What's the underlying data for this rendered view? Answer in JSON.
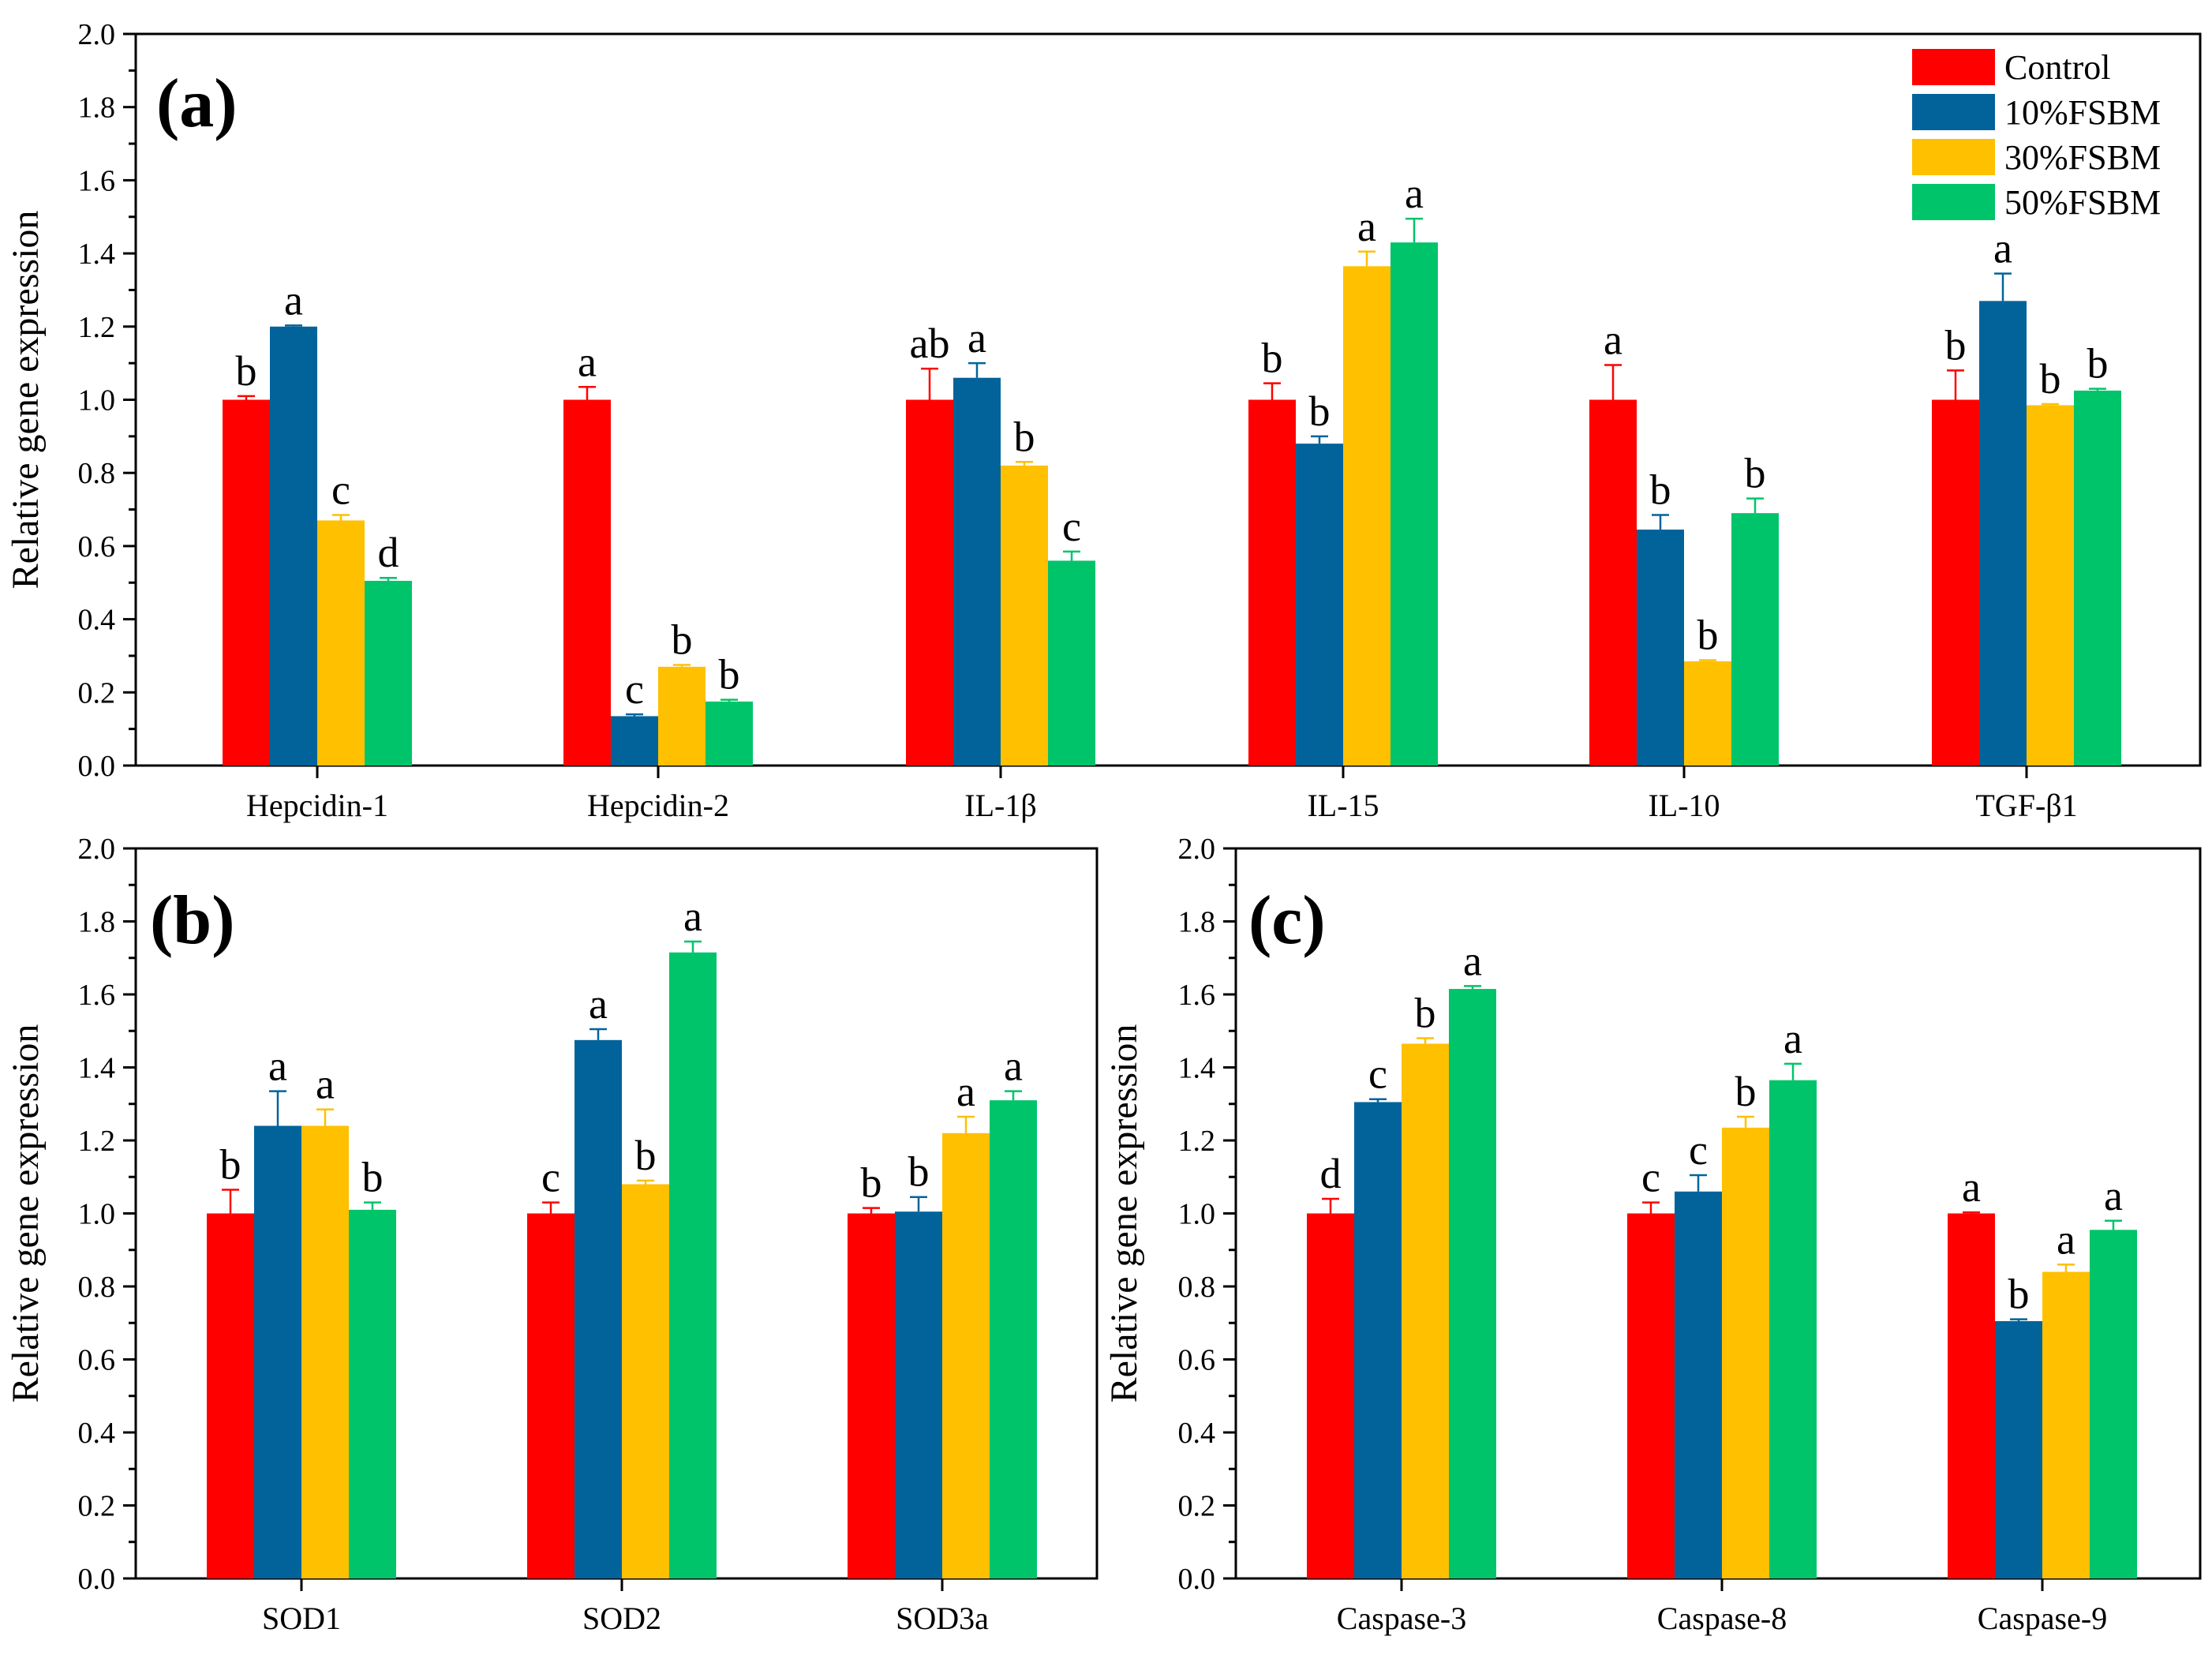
{
  "chart_data": [
    {
      "type": "bar",
      "panel_label": "(a)",
      "ylabel": "Relative gene expression",
      "ylim": [
        0,
        2.0
      ],
      "yticks": [
        "0.0",
        "0.2",
        "0.4",
        "0.6",
        "0.8",
        "1.0",
        "1.2",
        "1.4",
        "1.6",
        "1.8",
        "2.0"
      ],
      "categories": [
        "Hepcidin-1",
        "Hepcidin-2",
        "IL-1β",
        "IL-15",
        "IL-10",
        "TGF-β1"
      ],
      "series": [
        {
          "name": "Control",
          "color": "#FF0000",
          "values": [
            1.0,
            1.0,
            1.0,
            1.0,
            1.0,
            1.0
          ],
          "errors": [
            0.01,
            0.035,
            0.085,
            0.045,
            0.095,
            0.08
          ],
          "letters": [
            "b",
            "a",
            "ab",
            "b",
            "a",
            "b"
          ]
        },
        {
          "name": "10%FSBM",
          "color": "#02639B",
          "values": [
            1.2,
            0.135,
            1.06,
            0.88,
            0.645,
            1.27
          ],
          "errors": [
            0.003,
            0.005,
            0.04,
            0.02,
            0.04,
            0.075
          ],
          "letters": [
            "a",
            "c",
            "a",
            "b",
            "b",
            "a"
          ]
        },
        {
          "name": "30%FSBM",
          "color": "#FFC000",
          "values": [
            0.67,
            0.27,
            0.82,
            1.365,
            0.285,
            0.985
          ],
          "errors": [
            0.015,
            0.005,
            0.01,
            0.04,
            0.003,
            0.003
          ],
          "letters": [
            "c",
            "b",
            "b",
            "a",
            "b",
            "b"
          ]
        },
        {
          "name": "50%FSBM",
          "color": "#00C46A",
          "values": [
            0.505,
            0.175,
            0.56,
            1.43,
            0.69,
            1.025
          ],
          "errors": [
            0.008,
            0.005,
            0.025,
            0.065,
            0.04,
            0.005
          ],
          "letters": [
            "d",
            "b",
            "c",
            "a",
            "b",
            "b"
          ]
        }
      ],
      "legend": {
        "placement": "top-right",
        "entries": [
          "Control",
          "10%FSBM",
          "30%FSBM",
          "50%FSBM"
        ]
      }
    },
    {
      "type": "bar",
      "panel_label": "(b)",
      "ylabel": "Relative gene expression",
      "ylim": [
        0,
        2.0
      ],
      "yticks": [
        "0.0",
        "0.2",
        "0.4",
        "0.6",
        "0.8",
        "1.0",
        "1.2",
        "1.4",
        "1.6",
        "1.8",
        "2.0"
      ],
      "categories": [
        "SOD1",
        "SOD2",
        "SOD3a"
      ],
      "series": [
        {
          "name": "Control",
          "color": "#FF0000",
          "values": [
            1.0,
            1.0,
            1.0
          ],
          "errors": [
            0.065,
            0.03,
            0.015
          ],
          "letters": [
            "b",
            "c",
            "b"
          ]
        },
        {
          "name": "10%FSBM",
          "color": "#02639B",
          "values": [
            1.24,
            1.475,
            1.005
          ],
          "errors": [
            0.095,
            0.03,
            0.04
          ],
          "letters": [
            "a",
            "a",
            "b"
          ]
        },
        {
          "name": "30%FSBM",
          "color": "#FFC000",
          "values": [
            1.24,
            1.08,
            1.22
          ],
          "errors": [
            0.045,
            0.01,
            0.045
          ],
          "letters": [
            "a",
            "b",
            "a"
          ]
        },
        {
          "name": "50%FSBM",
          "color": "#00C46A",
          "values": [
            1.01,
            1.715,
            1.31
          ],
          "errors": [
            0.02,
            0.03,
            0.025
          ],
          "letters": [
            "b",
            "a",
            "a"
          ]
        }
      ]
    },
    {
      "type": "bar",
      "panel_label": "(c)",
      "ylabel": "Relative gene expression",
      "ylim": [
        0,
        2.0
      ],
      "yticks": [
        "0.0",
        "0.2",
        "0.4",
        "0.6",
        "0.8",
        "1.0",
        "1.2",
        "1.4",
        "1.6",
        "1.8",
        "2.0"
      ],
      "categories": [
        "Caspase-3",
        "Caspase-8",
        "Caspase-9"
      ],
      "series": [
        {
          "name": "Control",
          "color": "#FF0000",
          "values": [
            1.0,
            1.0,
            1.0
          ],
          "errors": [
            0.04,
            0.03,
            0.003
          ],
          "letters": [
            "d",
            "c",
            "a"
          ]
        },
        {
          "name": "10%FSBM",
          "color": "#02639B",
          "values": [
            1.305,
            1.06,
            0.705
          ],
          "errors": [
            0.008,
            0.045,
            0.005
          ],
          "letters": [
            "c",
            "c",
            "b"
          ]
        },
        {
          "name": "30%FSBM",
          "color": "#FFC000",
          "values": [
            1.465,
            1.235,
            0.84
          ],
          "errors": [
            0.015,
            0.03,
            0.02
          ],
          "letters": [
            "b",
            "b",
            "a"
          ]
        },
        {
          "name": "50%FSBM",
          "color": "#00C46A",
          "values": [
            1.615,
            1.365,
            0.955
          ],
          "errors": [
            0.008,
            0.045,
            0.025
          ],
          "letters": [
            "a",
            "a",
            "a"
          ]
        }
      ]
    }
  ]
}
